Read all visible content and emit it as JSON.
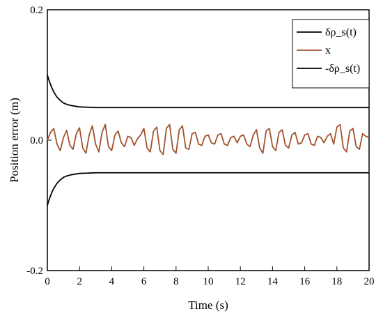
{
  "chart_data": {
    "type": "line",
    "title": "",
    "xlabel": "Time (s)",
    "ylabel": "Position error (m)",
    "xlim": [
      0,
      20
    ],
    "ylim": [
      -0.2,
      0.2
    ],
    "x_ticks": [
      0,
      2,
      4,
      6,
      8,
      10,
      12,
      14,
      16,
      18,
      20
    ],
    "x_tick_labels": [
      "0",
      "2",
      "4",
      "6",
      "8",
      "10",
      "12",
      "14",
      "16",
      "18",
      "20"
    ],
    "y_ticks": [
      -0.2,
      0.0,
      0.2
    ],
    "y_tick_labels": [
      "-0.2",
      "0.0",
      "0.2"
    ],
    "grid": false,
    "legend_position": "top-right",
    "series": [
      {
        "name": "δρ_s(t)",
        "color": "#000000",
        "x": [
          0,
          0.1,
          0.2,
          0.3,
          0.4,
          0.5,
          0.6,
          0.8,
          1.0,
          1.2,
          1.5,
          2.0,
          2.5,
          3.0,
          4.0,
          6.0,
          10.0,
          15.0,
          20.0
        ],
        "values": [
          0.1,
          0.092,
          0.085,
          0.079,
          0.074,
          0.07,
          0.066,
          0.061,
          0.057,
          0.055,
          0.053,
          0.051,
          0.0505,
          0.05,
          0.05,
          0.05,
          0.05,
          0.05,
          0.05
        ]
      },
      {
        "name": "x",
        "color": "#a0522d",
        "x": [
          0.0,
          0.2,
          0.4,
          0.6,
          0.8,
          1.0,
          1.2,
          1.4,
          1.6,
          1.8,
          2.0,
          2.2,
          2.4,
          2.6,
          2.8,
          3.0,
          3.2,
          3.4,
          3.6,
          3.8,
          4.0,
          4.2,
          4.4,
          4.6,
          4.8,
          5.0,
          5.2,
          5.4,
          5.6,
          5.8,
          6.0,
          6.2,
          6.4,
          6.6,
          6.8,
          7.0,
          7.2,
          7.4,
          7.6,
          7.8,
          8.0,
          8.2,
          8.4,
          8.6,
          8.8,
          9.0,
          9.2,
          9.4,
          9.6,
          9.8,
          10.0,
          10.2,
          10.4,
          10.6,
          10.8,
          11.0,
          11.2,
          11.4,
          11.6,
          11.8,
          12.0,
          12.2,
          12.4,
          12.6,
          12.8,
          13.0,
          13.2,
          13.4,
          13.6,
          13.8,
          14.0,
          14.2,
          14.4,
          14.6,
          14.8,
          15.0,
          15.2,
          15.4,
          15.6,
          15.8,
          16.0,
          16.2,
          16.4,
          16.6,
          16.8,
          17.0,
          17.2,
          17.4,
          17.6,
          17.8,
          18.0,
          18.2,
          18.4,
          18.6,
          18.8,
          19.0,
          19.2,
          19.4,
          19.6,
          19.8,
          20.0
        ],
        "values": [
          0.0,
          0.012,
          0.018,
          -0.006,
          -0.016,
          0.004,
          0.015,
          -0.008,
          -0.014,
          0.01,
          0.019,
          -0.012,
          -0.02,
          0.008,
          0.022,
          -0.006,
          -0.018,
          0.012,
          0.024,
          -0.01,
          -0.016,
          0.008,
          0.014,
          -0.004,
          -0.01,
          0.006,
          0.004,
          -0.008,
          0.002,
          0.008,
          0.018,
          -0.012,
          -0.018,
          0.014,
          0.02,
          -0.016,
          -0.022,
          0.018,
          0.024,
          -0.014,
          -0.02,
          0.016,
          0.022,
          -0.012,
          -0.014,
          0.01,
          0.012,
          -0.006,
          -0.008,
          0.006,
          0.008,
          -0.004,
          -0.006,
          0.008,
          0.01,
          -0.006,
          -0.008,
          0.004,
          0.006,
          -0.004,
          0.006,
          0.008,
          -0.006,
          -0.01,
          0.008,
          0.016,
          -0.012,
          -0.02,
          0.014,
          0.018,
          -0.01,
          -0.016,
          0.012,
          0.016,
          -0.008,
          -0.012,
          0.008,
          0.012,
          -0.006,
          -0.004,
          0.008,
          0.01,
          -0.006,
          -0.008,
          0.006,
          0.004,
          -0.004,
          0.006,
          0.01,
          -0.006,
          0.02,
          0.024,
          -0.012,
          -0.018,
          0.014,
          0.018,
          -0.01,
          -0.014,
          0.01,
          0.006,
          0.004
        ]
      },
      {
        "name": "-δρ_s(t)",
        "color": "#000000",
        "x": [
          0,
          0.1,
          0.2,
          0.3,
          0.4,
          0.5,
          0.6,
          0.8,
          1.0,
          1.2,
          1.5,
          2.0,
          2.5,
          3.0,
          4.0,
          6.0,
          10.0,
          15.0,
          20.0
        ],
        "values": [
          -0.1,
          -0.092,
          -0.085,
          -0.079,
          -0.074,
          -0.07,
          -0.066,
          -0.061,
          -0.057,
          -0.055,
          -0.053,
          -0.051,
          -0.0505,
          -0.05,
          -0.05,
          -0.05,
          -0.05,
          -0.05,
          -0.05
        ]
      }
    ]
  }
}
